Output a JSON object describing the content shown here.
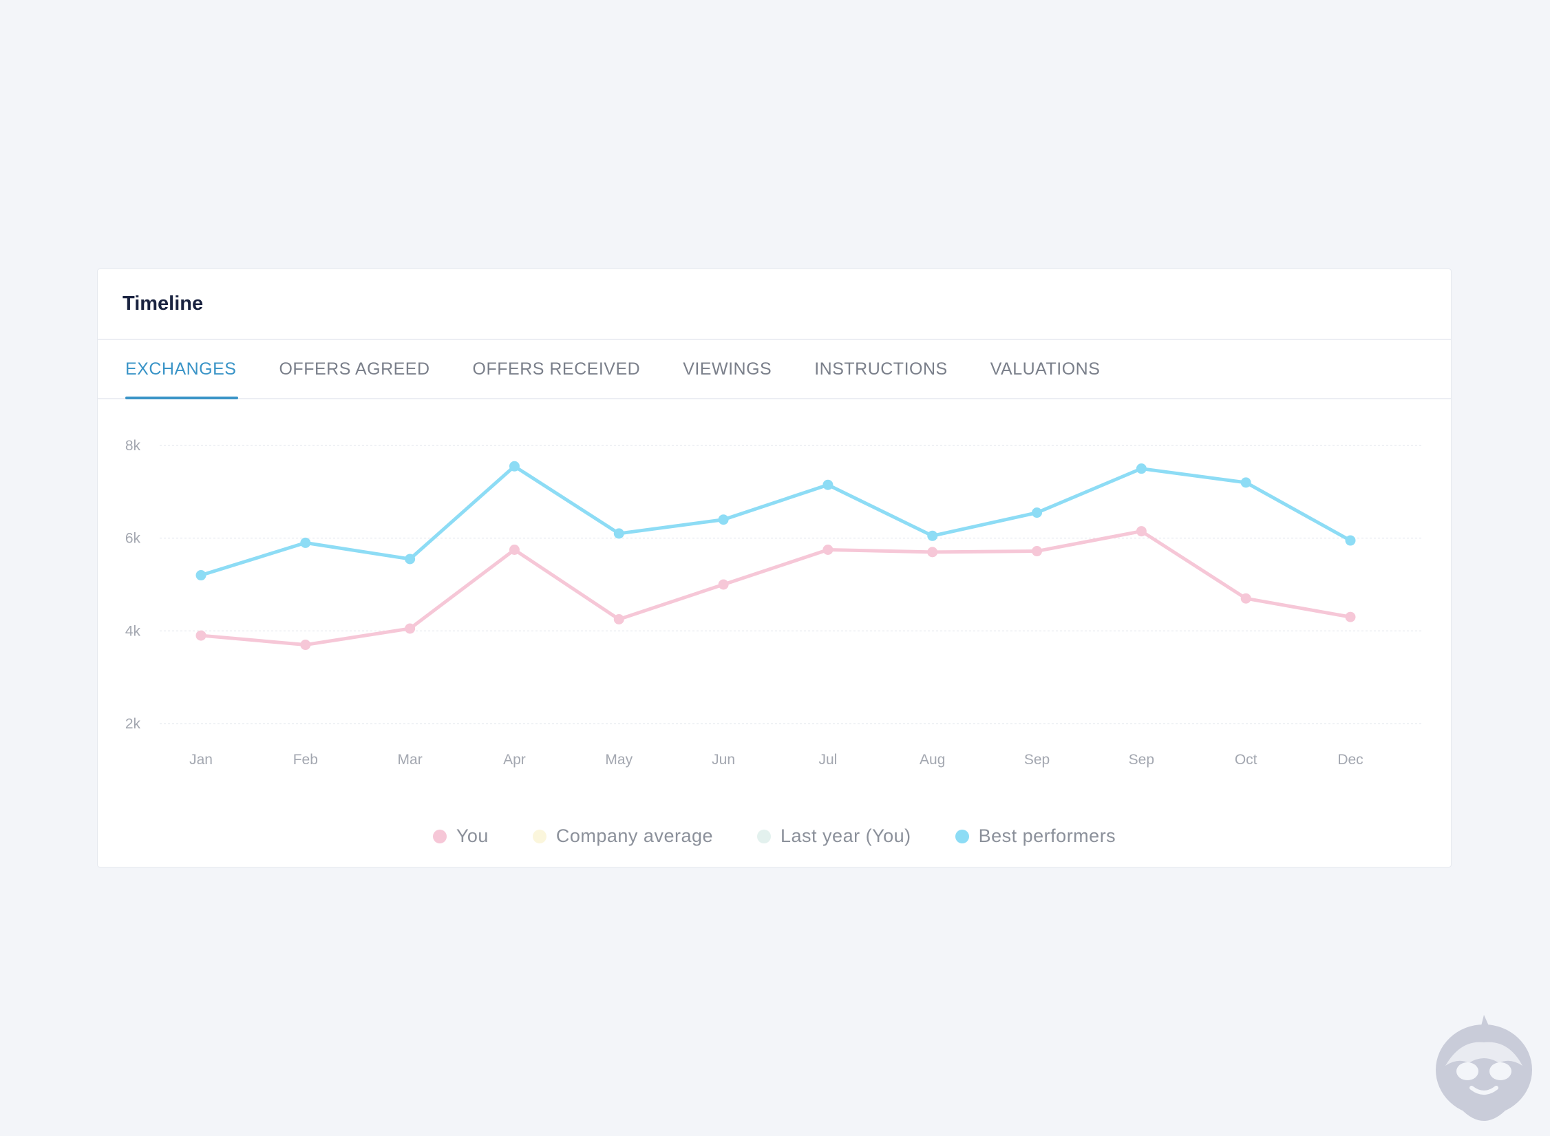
{
  "card": {
    "title": "Timeline"
  },
  "tabs": [
    {
      "label": "EXCHANGES",
      "active": true
    },
    {
      "label": "OFFERS AGREED",
      "active": false
    },
    {
      "label": "OFFERS RECEIVED",
      "active": false
    },
    {
      "label": "VIEWINGS",
      "active": false
    },
    {
      "label": "INSTRUCTIONS",
      "active": false
    },
    {
      "label": "VALUATIONS",
      "active": false
    }
  ],
  "colors": {
    "accent": "#3a94c7",
    "you": "#f6c7d7",
    "company_average": "#fbf6dc",
    "last_year": "#e3f1ee",
    "best_performers": "#8ddcf5"
  },
  "chart_data": {
    "type": "line",
    "categories": [
      "Jan",
      "Feb",
      "Mar",
      "Apr",
      "May",
      "Jun",
      "Jul",
      "Aug",
      "Sep",
      "Sep",
      "Oct",
      "Dec"
    ],
    "y_ticks": [
      {
        "value": 2000,
        "label": "2k"
      },
      {
        "value": 4000,
        "label": "4k"
      },
      {
        "value": 6000,
        "label": "6k"
      },
      {
        "value": 8000,
        "label": "8k"
      }
    ],
    "ylim": [
      2000,
      8000
    ],
    "grid": true,
    "legend_position": "bottom",
    "legend": [
      {
        "label": "You",
        "color": "#f6c7d7"
      },
      {
        "label": "Company average",
        "color": "#fbf6dc"
      },
      {
        "label": "Last year (You)",
        "color": "#e3f1ee"
      },
      {
        "label": "Best performers",
        "color": "#8ddcf5"
      }
    ],
    "series": [
      {
        "name": "You",
        "color": "#f6c7d7",
        "values": [
          3900,
          3700,
          4050,
          5750,
          4250,
          5000,
          5750,
          5700,
          5720,
          6150,
          4700,
          4300
        ]
      },
      {
        "name": "Best performers",
        "color": "#8ddcf5",
        "values": [
          5200,
          5900,
          5550,
          7550,
          6100,
          6400,
          7150,
          6050,
          6550,
          7500,
          7200,
          5950
        ]
      }
    ]
  }
}
